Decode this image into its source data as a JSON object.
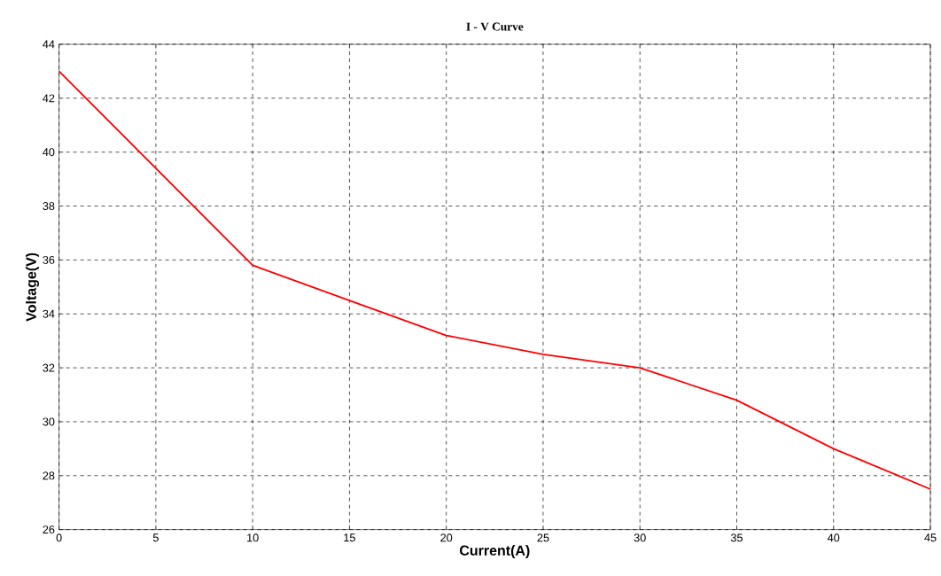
{
  "chart_data": {
    "type": "line",
    "title": "I - V Curve",
    "xlabel": "Current(A)",
    "ylabel": "Voltage(V)",
    "x": [
      0,
      5,
      10,
      15,
      20,
      25,
      30,
      35,
      40,
      45
    ],
    "series": [
      {
        "color": "#ff0000",
        "values": [
          43,
          39.4,
          35.8,
          34.5,
          33.2,
          32.5,
          32.0,
          30.8,
          29.0,
          27.5
        ]
      }
    ],
    "xlim": [
      0,
      45
    ],
    "ylim": [
      26,
      44
    ],
    "xticks": [
      0,
      5,
      10,
      15,
      20,
      25,
      30,
      35,
      40,
      45
    ],
    "yticks": [
      26,
      28,
      30,
      32,
      34,
      36,
      38,
      40,
      42,
      44
    ],
    "grid": true,
    "marker": "none",
    "line_style": "solid"
  }
}
